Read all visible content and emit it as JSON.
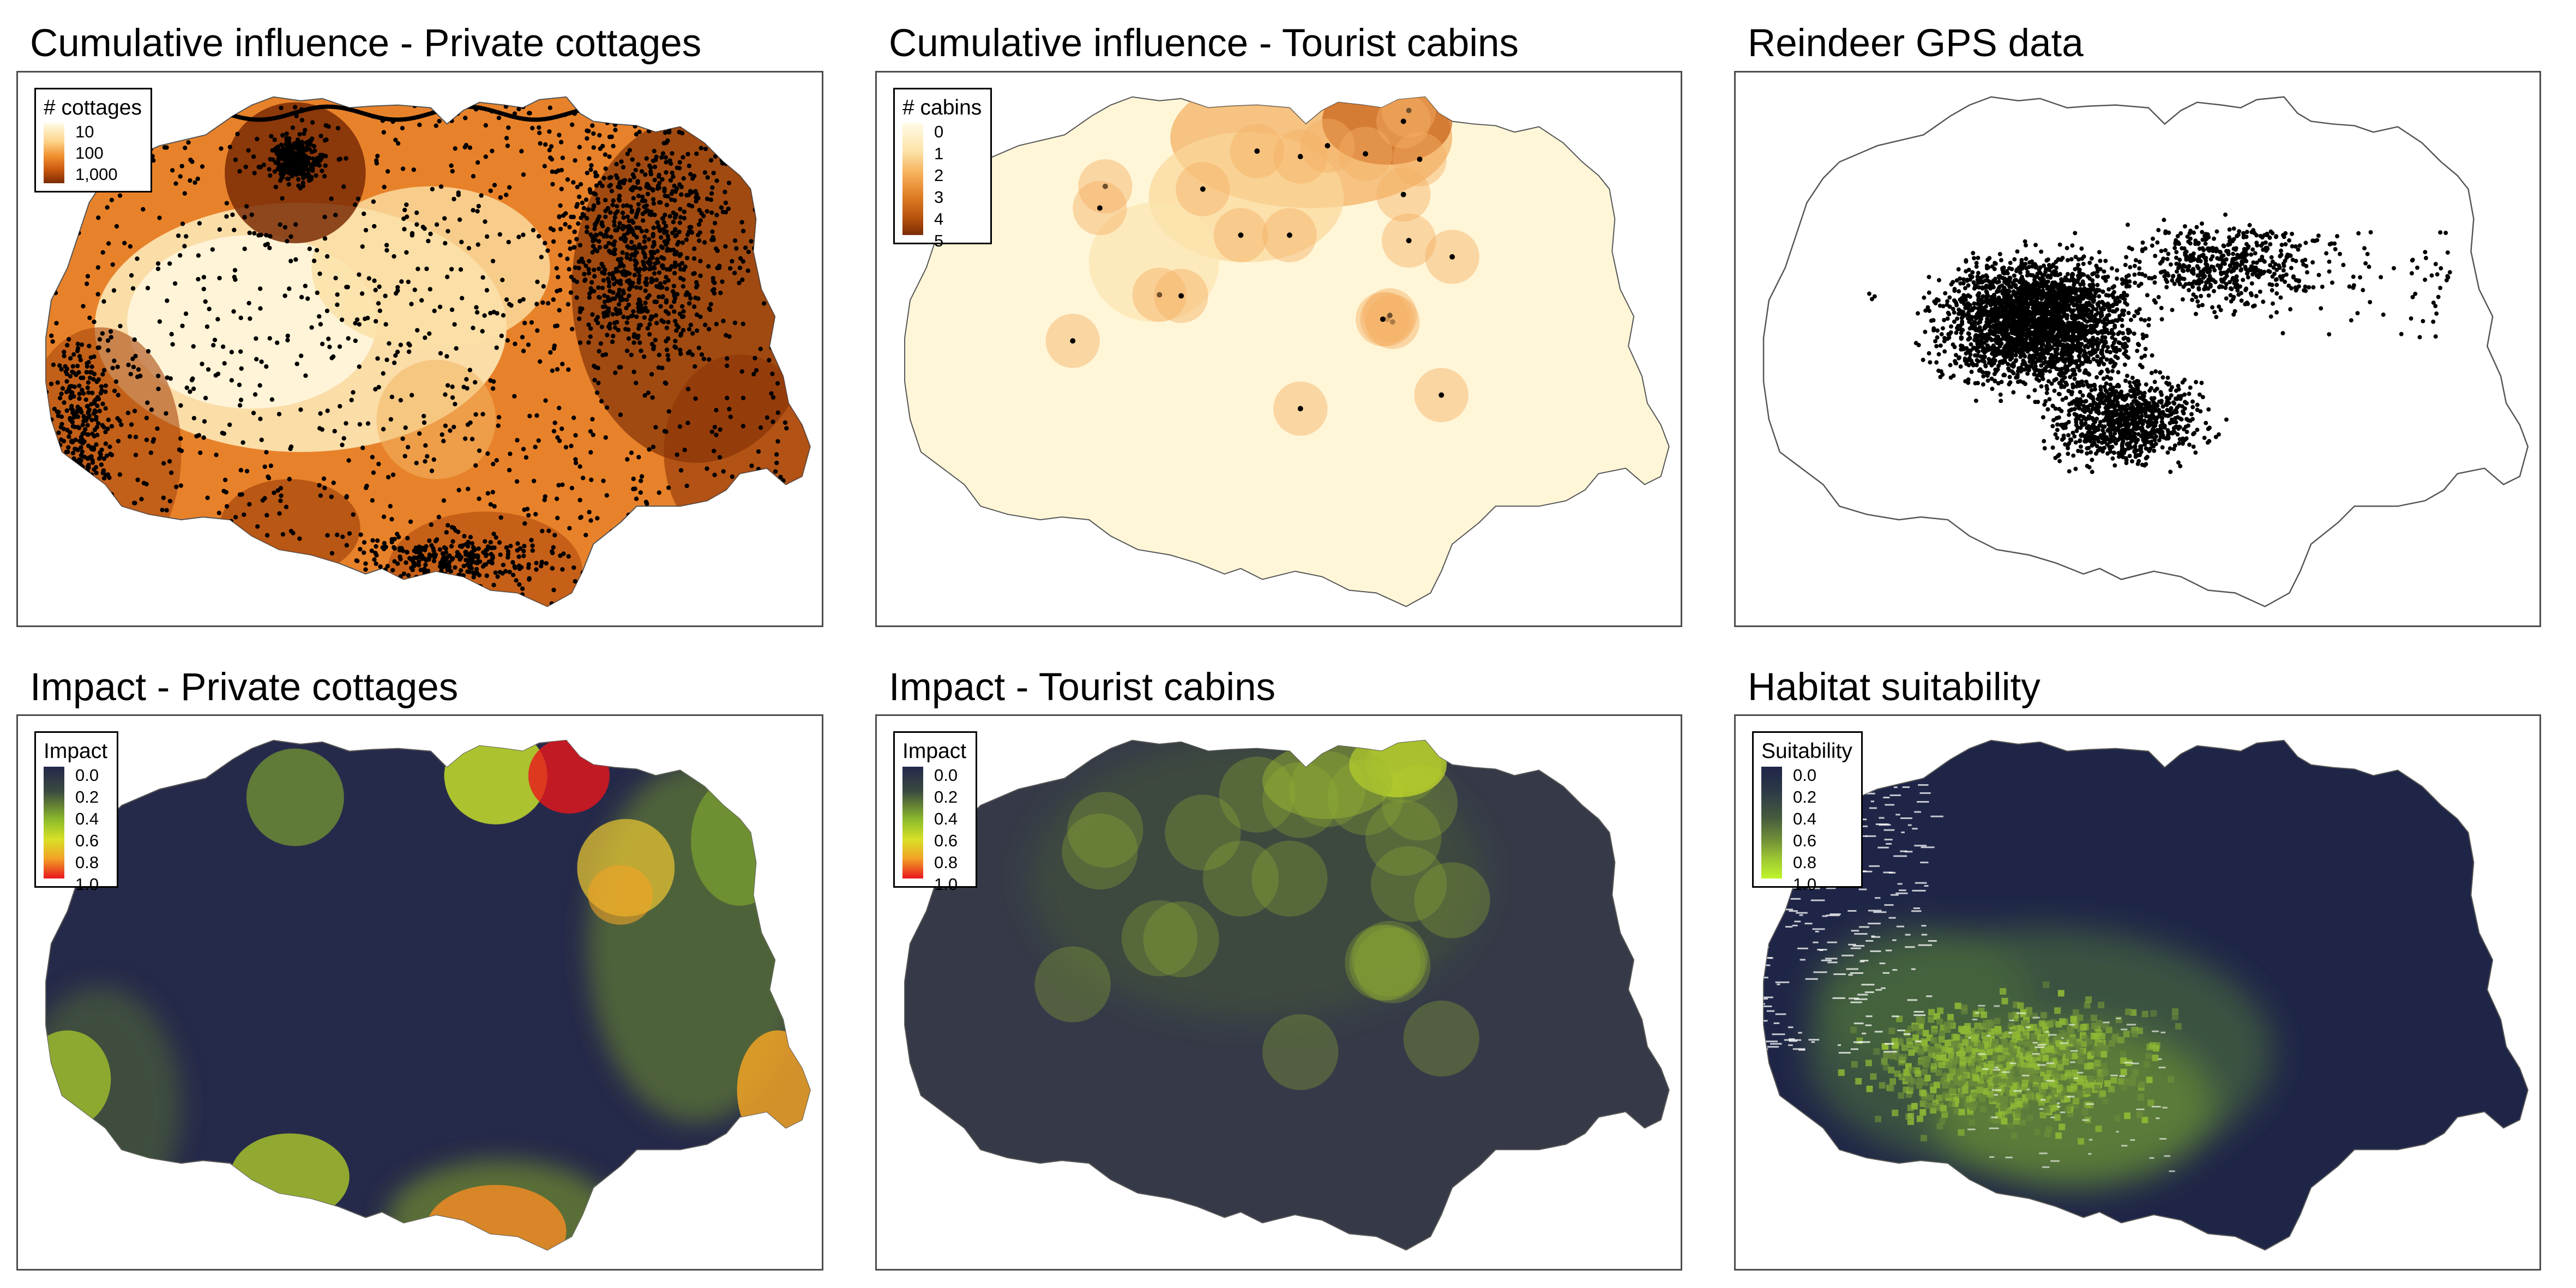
{
  "panels": [
    {
      "id": "p1",
      "title": "Cumulative influence - Private cottages",
      "legend": {
        "title": "# cottages",
        "labels": [
          "10",
          "100",
          "1,000"
        ],
        "colors": [
          "#fffbe6",
          "#fcd58b",
          "#f08f2e",
          "#c9570f",
          "#7a2c05"
        ]
      }
    },
    {
      "id": "p2",
      "title": "Cumulative influence - Tourist cabins",
      "legend": {
        "title": "# cabins",
        "labels": [
          "0",
          "1",
          "2",
          "3",
          "4",
          "5"
        ],
        "colors": [
          "#fffbe6",
          "#fce3a8",
          "#f6b05a",
          "#e07f25",
          "#b6520d",
          "#7a2c05"
        ]
      }
    },
    {
      "id": "p3",
      "title": "Reindeer GPS data"
    },
    {
      "id": "p4",
      "title": "Impact - Private cottages",
      "legend": {
        "title": "Impact",
        "labels": [
          "0.0",
          "0.2",
          "0.4",
          "0.6",
          "0.8",
          "1.0"
        ],
        "colors": [
          "#24284a",
          "#3a4a40",
          "#8fbc2a",
          "#d8e026",
          "#f2a326",
          "#e8161c"
        ]
      }
    },
    {
      "id": "p5",
      "title": "Impact - Tourist cabins",
      "legend": {
        "title": "Impact",
        "labels": [
          "0.0",
          "0.2",
          "0.4",
          "0.6",
          "0.8",
          "1.0"
        ],
        "colors": [
          "#24284a",
          "#3a4a40",
          "#8fbc2a",
          "#d8e026",
          "#f2a326",
          "#e8161c"
        ]
      }
    },
    {
      "id": "p6",
      "title": "Habitat suitability",
      "legend": {
        "title": "Suitability",
        "labels": [
          "0.0",
          "0.2",
          "0.4",
          "0.6",
          "0.8",
          "1.0"
        ],
        "colors": [
          "#1f2547",
          "#2d3a47",
          "#445a3e",
          "#6f8e38",
          "#9dc633",
          "#bff52b"
        ]
      }
    }
  ]
}
